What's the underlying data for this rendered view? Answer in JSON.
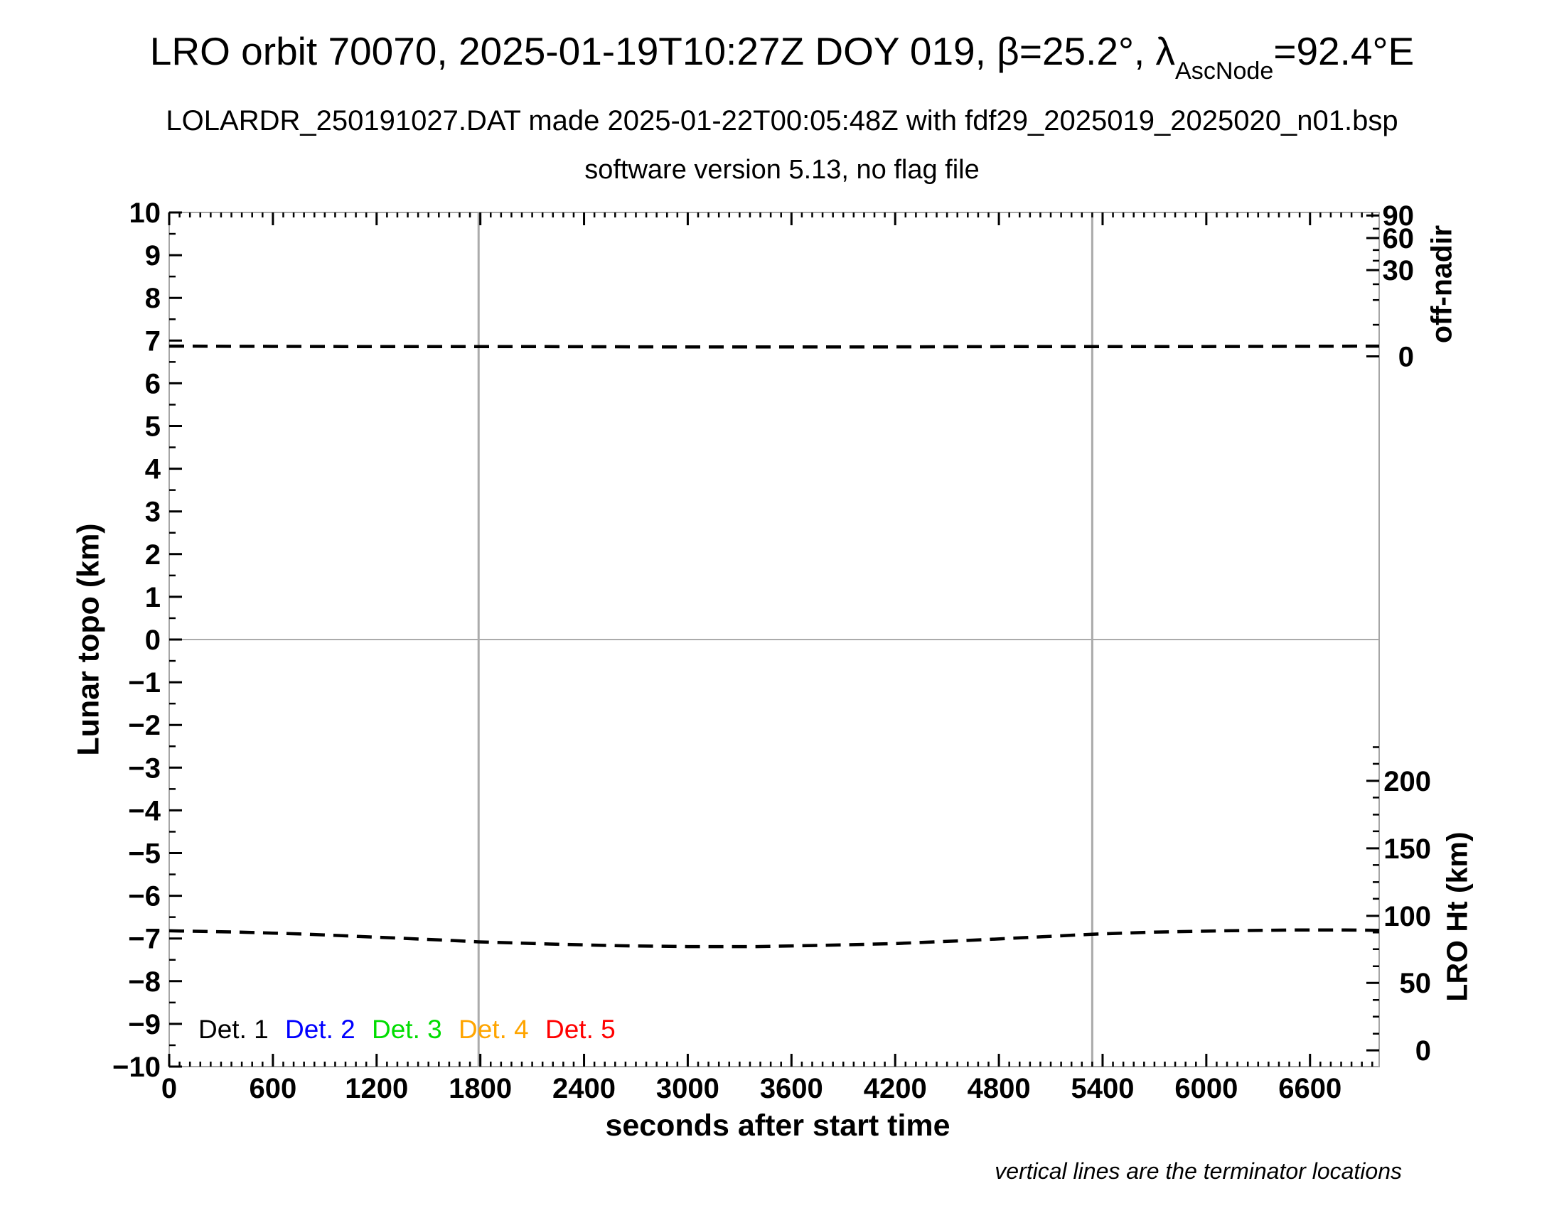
{
  "header": {
    "title_prefix": "LRO orbit 70070, 2025-01-19T10:27Z DOY 019, β=25.2°, λ",
    "title_subscript": "AscNode",
    "title_suffix": "=92.4°E",
    "subtitle": "LOLARDR_250191027.DAT made 2025-01-22T00:05:48Z with fdf29_2025019_2025020_n01.bsp",
    "version_line": "software version 5.13, no flag file"
  },
  "chart_data": {
    "type": "line",
    "title": "LRO orbit 70070, 2025-01-19T10:27Z DOY 019, β=25.2°, λAscNode=92.4°E",
    "xlabel": "seconds after start time",
    "ylabel_left": "Lunar topo (km)",
    "ylabel_right_top": "off-nadir",
    "ylabel_right_bottom": "LRO Ht (km)",
    "note": "vertical lines are the terminator locations",
    "x_range": [
      0,
      7000
    ],
    "y_range_left": [
      -10,
      10
    ],
    "x_major_ticks": [
      0,
      600,
      1200,
      1800,
      2400,
      3000,
      3600,
      4200,
      4800,
      5400,
      6000,
      6600
    ],
    "x_minor_step": 60,
    "y_major_ticks": [
      -10,
      -9,
      -8,
      -7,
      -6,
      -5,
      -4,
      -3,
      -2,
      -1,
      0,
      1,
      2,
      3,
      4,
      5,
      6,
      7,
      8,
      9,
      10
    ],
    "y_minor_step": 0.5,
    "grid": {
      "horizontal_zero_line_y": 0,
      "terminator_lines_x": [
        1790,
        5340
      ],
      "grid_color": "#ababab",
      "frame_color": "#a6a6a6"
    },
    "off_nadir_axis": {
      "major_ticks": [
        {
          "label": "90",
          "topo_pos": 9.93
        },
        {
          "label": "60",
          "topo_pos": 9.4
        },
        {
          "label": "30",
          "topo_pos": 8.65
        },
        {
          "label": "0",
          "topo_pos": 6.63
        }
      ],
      "minor_ticks_topo_pos": [
        9.62,
        9.12,
        8.87,
        8.32,
        7.95,
        7.37
      ]
    },
    "lro_ht_axis": {
      "major_ticks": [
        {
          "label": "200",
          "topo_pos": -3.31
        },
        {
          "label": "150",
          "topo_pos": -4.89
        },
        {
          "label": "100",
          "topo_pos": -6.47
        },
        {
          "label": "50",
          "topo_pos": -8.04
        },
        {
          "label": "0",
          "topo_pos": -9.62
        }
      ],
      "minor_ticks_topo_pos": [
        -2.52,
        -2.91,
        -3.7,
        -4.1,
        -4.49,
        -5.28,
        -5.68,
        -6.07,
        -6.86,
        -7.25,
        -7.65,
        -8.44,
        -8.83,
        -9.23
      ]
    },
    "series": [
      {
        "name": "off-nadir angle (dashed, near 0°, all detectors overlapping)",
        "line_style": "dashed",
        "color": "#000000",
        "x": [
          0,
          1000,
          2000,
          3000,
          4000,
          5000,
          6000,
          7000
        ],
        "y_topo": [
          6.87,
          6.86,
          6.86,
          6.85,
          6.85,
          6.86,
          6.86,
          6.87
        ]
      },
      {
        "name": "LRO height (dashed)",
        "line_style": "dashed",
        "color": "#000000",
        "x": [
          0,
          400,
          800,
          1200,
          1600,
          1790,
          2200,
          2600,
          3000,
          3400,
          3800,
          4200,
          4600,
          5000,
          5340,
          5700,
          6100,
          6500,
          6800,
          7000
        ],
        "y_topo": [
          -6.82,
          -6.85,
          -6.9,
          -6.97,
          -7.04,
          -7.08,
          -7.13,
          -7.17,
          -7.19,
          -7.19,
          -7.16,
          -7.12,
          -7.05,
          -6.97,
          -6.9,
          -6.85,
          -6.82,
          -6.8,
          -6.8,
          -6.81
        ],
        "ht_km": [
          88.8,
          87.8,
          86.2,
          84.0,
          81.8,
          80.5,
          78.9,
          77.7,
          77.0,
          77.0,
          78.0,
          79.2,
          81.5,
          84.0,
          86.2,
          87.8,
          88.8,
          89.4,
          89.4,
          89.1
        ]
      }
    ],
    "legend": [
      {
        "label": "Det. 1",
        "color": "#000000"
      },
      {
        "label": "Det. 2",
        "color": "#0000ff"
      },
      {
        "label": "Det. 3",
        "color": "#00dd00"
      },
      {
        "label": "Det. 4",
        "color": "#ffa500"
      },
      {
        "label": "Det. 5",
        "color": "#ff0000"
      }
    ]
  }
}
